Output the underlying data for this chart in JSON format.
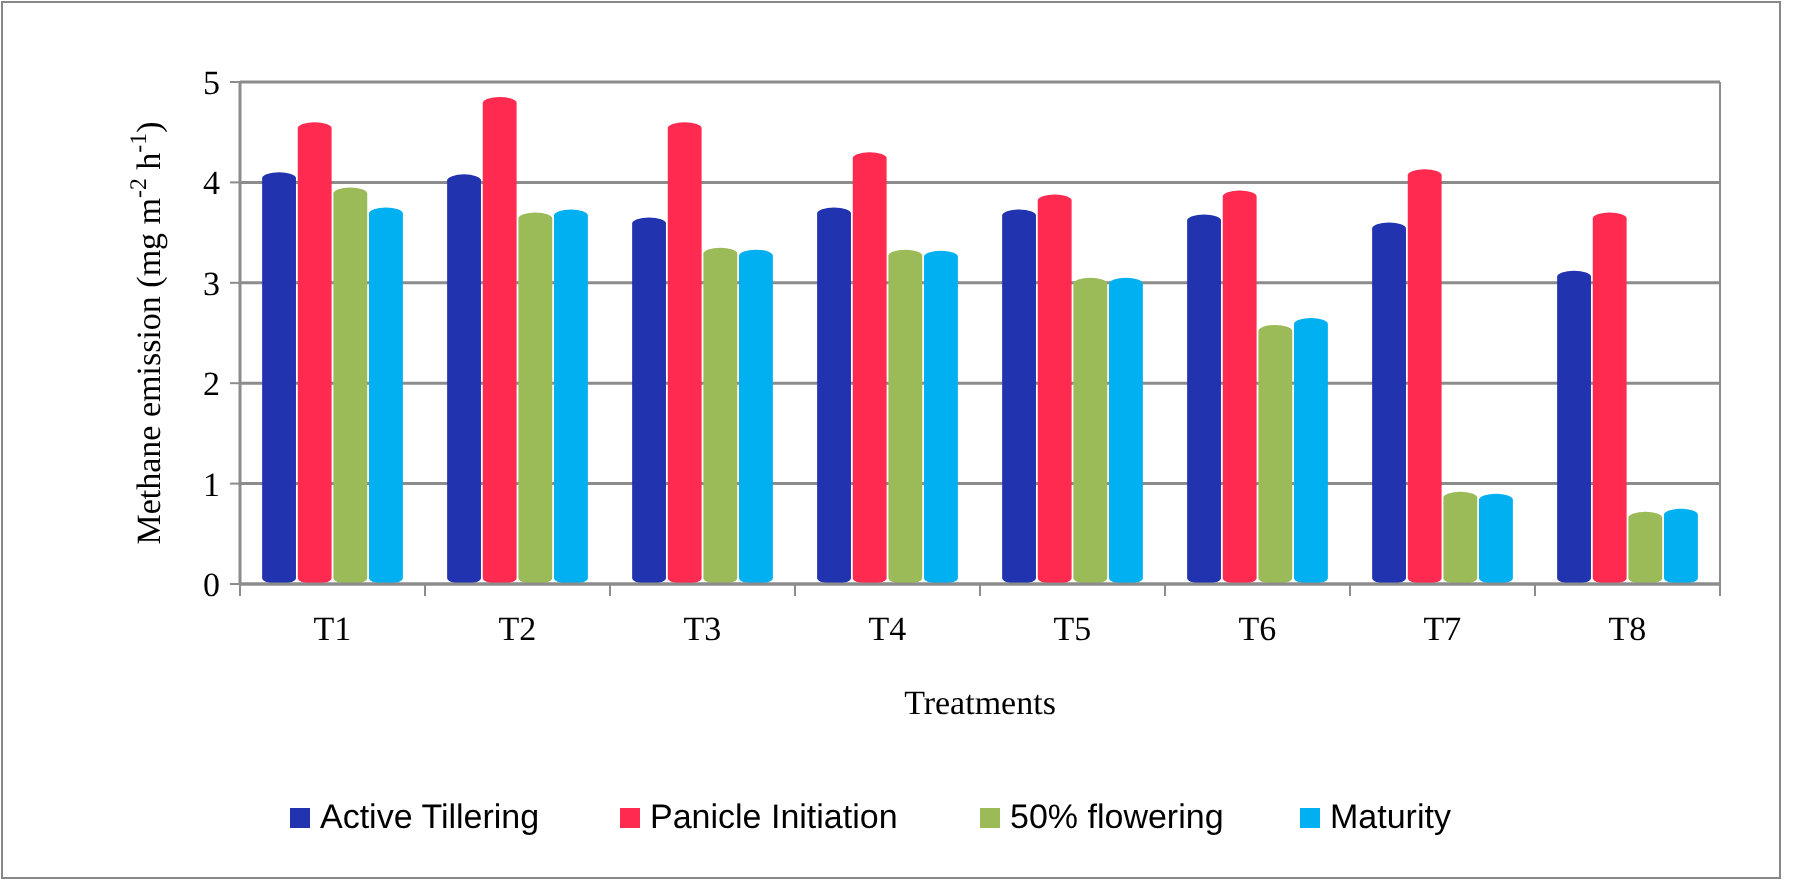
{
  "chart_data": {
    "type": "bar",
    "xlabel": "Treatments",
    "ylabel": "Methane emission (mg m$^{-2}$ h$^{-1}$)",
    "categories": [
      "T1",
      "T2",
      "T3",
      "T4",
      "T5",
      "T6",
      "T7",
      "T8"
    ],
    "series": [
      {
        "name": "Active Tillering",
        "color": "#2233b0",
        "values": [
          4.1,
          4.08,
          3.65,
          3.75,
          3.73,
          3.68,
          3.6,
          3.12
        ]
      },
      {
        "name": "Panicle Initiation",
        "color": "#ff2a4f",
        "values": [
          4.6,
          4.85,
          4.6,
          4.3,
          3.88,
          3.92,
          4.13,
          3.7
        ]
      },
      {
        "name": "50% flowering",
        "color": "#9bbb59",
        "values": [
          3.95,
          3.7,
          3.35,
          3.33,
          3.05,
          2.58,
          0.92,
          0.72
        ]
      },
      {
        "name": "Maturity",
        "color": "#00b0f0",
        "values": [
          3.75,
          3.73,
          3.33,
          3.32,
          3.05,
          2.65,
          0.9,
          0.75
        ]
      }
    ],
    "ylim": [
      0,
      5
    ],
    "yticks": [
      0,
      1,
      2,
      3,
      4,
      5
    ],
    "grid": "y",
    "legend": "bottom"
  }
}
